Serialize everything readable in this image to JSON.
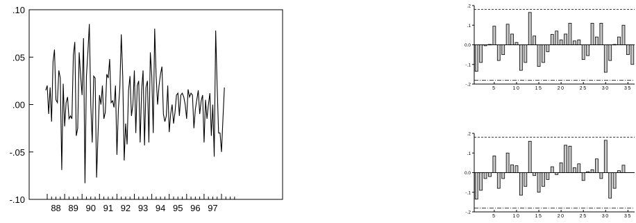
{
  "chart_data": [
    {
      "type": "line",
      "title": "",
      "xlabel": "",
      "ylabel": "",
      "ylim": [
        -0.1,
        0.1
      ],
      "yticks": [
        ".10",
        ".05",
        ".00",
        "-.05",
        "-.10"
      ],
      "yticks_values": [
        0.1,
        0.05,
        0.0,
        -0.05,
        -0.1
      ],
      "xticks": [
        "88",
        "89",
        "90",
        "91",
        "92",
        "93",
        "94",
        "95",
        "96",
        "97"
      ],
      "x_start": "1987-12",
      "x_end": "1997-10",
      "frequency": "monthly",
      "grid": false,
      "series": [
        {
          "values": [
            0.015,
            0.02,
            -0.01,
            0.018,
            -0.018,
            0.045,
            0.058,
            0.005,
            0.002,
            0.036,
            0.028,
            -0.069,
            0.022,
            -0.023,
            0.002,
            0.008,
            -0.015,
            -0.012,
            -0.015,
            0.052,
            0.066,
            -0.033,
            -0.025,
            0.055,
            0.03,
            0.01,
            0.07,
            -0.083,
            0.03,
            0.055,
            0.085,
            0.0,
            -0.04,
            0.03,
            0.028,
            -0.077,
            -0.03,
            0.01,
            0.0,
            0.02,
            -0.015,
            -0.008,
            0.032,
            0.028,
            0.048,
            0.002,
            0.004,
            -0.003,
            0.02,
            -0.053,
            -0.005,
            0.018,
            0.074,
            0.03,
            -0.059,
            -0.02,
            -0.042,
            0.015,
            0.03,
            -0.012,
            0.0,
            0.036,
            -0.03,
            0.02,
            0.025,
            -0.04,
            0.015,
            0.036,
            -0.043,
            0.018,
            0.025,
            -0.04,
            0.055,
            0.03,
            -0.03,
            0.08,
            0.03,
            0.0,
            0.02,
            0.032,
            0.04,
            -0.01,
            -0.018,
            -0.012,
            0.02,
            -0.029,
            -0.01,
            0.0,
            -0.02,
            -0.008,
            0.01,
            0.012,
            -0.012,
            0.01,
            0.012,
            0.008,
            0.0,
            -0.015,
            0.016,
            0.008,
            0.012,
            0.01,
            -0.025,
            -0.005,
            0.005,
            0.015,
            -0.01,
            0.004,
            0.01,
            -0.04,
            0.005,
            -0.015,
            0.0,
            0.012,
            -0.033,
            0.0,
            -0.055,
            0.078,
            0.02,
            -0.03,
            -0.03,
            -0.05,
            -0.015,
            0.018
          ]
        }
      ]
    },
    {
      "type": "bar",
      "title": "",
      "xlabel": "",
      "ylabel": "",
      "ylim": [
        -0.2,
        0.2
      ],
      "yticks": [
        ".2",
        ".1",
        "0.0",
        "-.1",
        "-.2"
      ],
      "yticks_values": [
        0.2,
        0.1,
        0.0,
        -0.1,
        -0.2
      ],
      "xticks": [
        "5",
        "10",
        "15",
        "20",
        "25",
        "30",
        "35"
      ],
      "xticks_values": [
        5,
        10,
        15,
        20,
        25,
        30,
        35
      ],
      "confidence_band": 0.18,
      "grid": false,
      "categories": [
        1,
        2,
        3,
        4,
        5,
        6,
        7,
        8,
        9,
        10,
        11,
        12,
        13,
        14,
        15,
        16,
        17,
        18,
        19,
        20,
        21,
        22,
        23,
        24,
        25,
        26,
        27,
        28,
        29,
        30,
        31,
        32,
        33,
        34,
        35,
        36
      ],
      "values": [
        -0.135,
        -0.09,
        -0.005,
        0.002,
        0.095,
        -0.08,
        -0.05,
        0.105,
        0.055,
        0.012,
        -0.13,
        -0.09,
        0.165,
        0.045,
        -0.11,
        -0.09,
        -0.035,
        0.053,
        0.07,
        0.025,
        0.055,
        0.11,
        0.02,
        0.025,
        -0.075,
        -0.055,
        0.11,
        0.04,
        0.11,
        -0.14,
        -0.08,
        0.002,
        0.04,
        0.1,
        -0.05,
        -0.1
      ]
    },
    {
      "type": "bar",
      "title": "",
      "xlabel": "",
      "ylabel": "",
      "ylim": [
        -0.2,
        0.2
      ],
      "yticks": [
        ".2",
        ".1",
        "0.0",
        "-.1",
        "-.2"
      ],
      "yticks_values": [
        0.2,
        0.1,
        0.0,
        -0.1,
        -0.2
      ],
      "xticks": [
        "5",
        "10",
        "15",
        "20",
        "25",
        "30",
        "35"
      ],
      "xticks_values": [
        5,
        10,
        15,
        20,
        25,
        30,
        35
      ],
      "confidence_band": 0.18,
      "grid": false,
      "categories": [
        1,
        2,
        3,
        4,
        5,
        6,
        7,
        8,
        9,
        10,
        11,
        12,
        13,
        14,
        15,
        16,
        17,
        18,
        19,
        20,
        21,
        22,
        23,
        24,
        25,
        26,
        27,
        28,
        29,
        30,
        31,
        32,
        33,
        34,
        35,
        36
      ],
      "values": [
        -0.135,
        -0.09,
        -0.03,
        -0.02,
        0.085,
        -0.08,
        -0.03,
        0.1,
        0.04,
        0.035,
        -0.115,
        -0.07,
        0.16,
        -0.015,
        -0.1,
        -0.07,
        -0.035,
        0.03,
        -0.01,
        0.05,
        0.14,
        0.135,
        0.025,
        0.045,
        -0.04,
        0.005,
        0.015,
        0.07,
        -0.03,
        0.165,
        -0.13,
        -0.08,
        0.01,
        0.038,
        0.0,
        0.0
      ]
    }
  ]
}
